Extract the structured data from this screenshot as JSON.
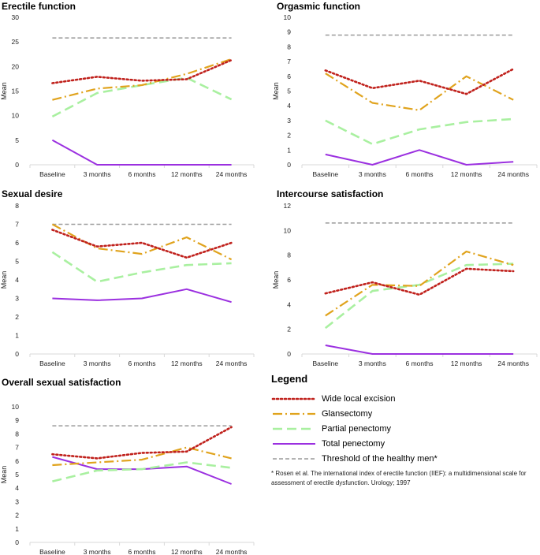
{
  "series_styles": [
    {
      "name": "Wide local excision",
      "color": "#c0211c",
      "dash": "2 3",
      "width": 2.6,
      "cap": "round"
    },
    {
      "name": "Glansectomy",
      "color": "#e0a31d",
      "dash": "12 4 2 4",
      "width": 2.2,
      "cap": "butt"
    },
    {
      "name": "Partial penectomy",
      "color": "#a9f0a0",
      "dash": "12 6",
      "width": 2.6,
      "cap": "butt"
    },
    {
      "name": "Total penectomy",
      "color": "#9b30e0",
      "dash": "",
      "width": 2,
      "cap": "butt"
    },
    {
      "name": "Threshold of the healthy men*",
      "color": "#9a9a9a",
      "dash": "5 3",
      "width": 1.5,
      "cap": "butt"
    }
  ],
  "chart_data": [
    {
      "type": "line",
      "title": "Erectile function",
      "xlabel": "",
      "ylabel": "Mean",
      "categories": [
        "Baseline",
        "3 months",
        "6 months",
        "12 months",
        "24 months"
      ],
      "ylim": [
        0,
        30
      ],
      "yticks": [
        0,
        5,
        10,
        15,
        20,
        25,
        30
      ],
      "series": [
        {
          "name": "Wide local excision",
          "values": [
            16.6,
            17.9,
            17.1,
            17.4,
            21.3
          ]
        },
        {
          "name": "Glansectomy",
          "values": [
            13.2,
            15.5,
            16.2,
            18.5,
            21.5
          ]
        },
        {
          "name": "Partial penectomy",
          "values": [
            9.8,
            14.6,
            16.2,
            17.7,
            13.3
          ]
        },
        {
          "name": "Total penectomy",
          "values": [
            5.0,
            0,
            0,
            0,
            0
          ]
        }
      ],
      "threshold": 25.8
    },
    {
      "type": "line",
      "title": "Orgasmic function",
      "xlabel": "",
      "ylabel": "Mean",
      "categories": [
        "Baseline",
        "3 months",
        "6 months",
        "12 months",
        "24 months"
      ],
      "ylim": [
        0,
        10
      ],
      "yticks": [
        0,
        1,
        2,
        3,
        4,
        5,
        6,
        7,
        8,
        9,
        10
      ],
      "series": [
        {
          "name": "Wide local excision",
          "values": [
            6.4,
            5.2,
            5.7,
            4.8,
            6.5
          ]
        },
        {
          "name": "Glansectomy",
          "values": [
            6.2,
            4.2,
            3.7,
            6.0,
            4.4
          ]
        },
        {
          "name": "Partial penectomy",
          "values": [
            3.0,
            1.4,
            2.4,
            2.9,
            3.1
          ]
        },
        {
          "name": "Total penectomy",
          "values": [
            0.7,
            0,
            1.0,
            0,
            0.2
          ]
        }
      ],
      "threshold": 8.8
    },
    {
      "type": "line",
      "title": "Sexual desire",
      "xlabel": "",
      "ylabel": "Mean",
      "categories": [
        "Baseline",
        "3 months",
        "6 months",
        "12 months",
        "24 months"
      ],
      "ylim": [
        0,
        8
      ],
      "yticks": [
        0,
        1,
        2,
        3,
        4,
        5,
        6,
        7,
        8
      ],
      "series": [
        {
          "name": "Wide local excision",
          "values": [
            6.7,
            5.8,
            6.0,
            5.2,
            6.0
          ]
        },
        {
          "name": "Glansectomy",
          "values": [
            7.0,
            5.7,
            5.4,
            6.3,
            5.1
          ]
        },
        {
          "name": "Partial penectomy",
          "values": [
            5.5,
            3.9,
            4.4,
            4.8,
            4.9
          ]
        },
        {
          "name": "Total penectomy",
          "values": [
            3.0,
            2.9,
            3.0,
            3.5,
            2.8
          ]
        }
      ],
      "threshold": 7.0
    },
    {
      "type": "line",
      "title": "Intercourse satisfaction",
      "xlabel": "",
      "ylabel": "Mean",
      "categories": [
        "Baseline",
        "3 months",
        "6 months",
        "12 months",
        "24 months"
      ],
      "ylim": [
        0,
        12
      ],
      "yticks": [
        0,
        2,
        4,
        6,
        8,
        10,
        12
      ],
      "series": [
        {
          "name": "Wide local excision",
          "values": [
            4.9,
            5.8,
            4.8,
            6.9,
            6.7
          ]
        },
        {
          "name": "Glansectomy",
          "values": [
            3.1,
            5.6,
            5.5,
            8.3,
            7.2
          ]
        },
        {
          "name": "Partial penectomy",
          "values": [
            2.1,
            5.1,
            5.6,
            7.2,
            7.3
          ]
        },
        {
          "name": "Total penectomy",
          "values": [
            0.7,
            0,
            0,
            0,
            0
          ]
        }
      ],
      "threshold": 10.6
    },
    {
      "type": "line",
      "title": "Overall sexual satisfaction",
      "xlabel": "",
      "ylabel": "Mean",
      "categories": [
        "Baseline",
        "3 months",
        "6 months",
        "12 months",
        "24 months"
      ],
      "ylim": [
        0,
        10
      ],
      "yticks": [
        0,
        1,
        2,
        3,
        4,
        5,
        6,
        7,
        8,
        9,
        10
      ],
      "series": [
        {
          "name": "Wide local excision",
          "values": [
            6.5,
            6.2,
            6.6,
            6.7,
            8.5
          ]
        },
        {
          "name": "Glansectomy",
          "values": [
            5.7,
            5.9,
            6.1,
            7.0,
            6.2
          ]
        },
        {
          "name": "Partial penectomy",
          "values": [
            4.5,
            5.3,
            5.4,
            5.9,
            5.5
          ]
        },
        {
          "name": "Total penectomy",
          "values": [
            6.3,
            5.4,
            5.4,
            5.6,
            4.3
          ]
        }
      ],
      "threshold": 8.6
    }
  ],
  "legend": {
    "title": "Legend",
    "items": [
      "Wide local excision",
      "Glansectomy",
      "Partial penectomy",
      "Total penectomy",
      "Threshold of the healthy men*"
    ],
    "footnote": "* Rosen et al. The international index of erectile function (IIEF): a multidimensional scale for assessment of erectile dysfunction. Urology; 1997"
  }
}
